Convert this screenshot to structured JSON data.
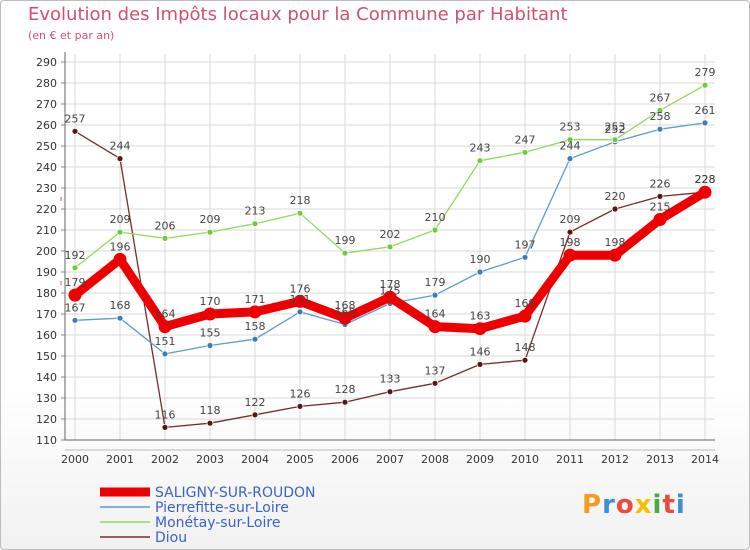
{
  "header": {
    "title": "Evolution des Impôts locaux pour la Commune par Habitant",
    "subtitle": "(en € et par an)"
  },
  "logo": {
    "text": "Proxiti",
    "colors": [
      "#f39c1f",
      "#3b8fd8",
      "#e94b3c",
      "#f2c200",
      "#49a942",
      "#e94b3c",
      "#3b8fd8"
    ]
  },
  "chart_data": {
    "type": "line",
    "x": [
      "2000",
      "2001",
      "2002",
      "2003",
      "2004",
      "2005",
      "2006",
      "2007",
      "2008",
      "2009",
      "2010",
      "2011",
      "2012",
      "2013",
      "2014"
    ],
    "ylim": [
      110,
      290
    ],
    "yticks": [
      110,
      120,
      130,
      140,
      150,
      160,
      170,
      180,
      190,
      200,
      210,
      220,
      230,
      240,
      250,
      260,
      270,
      280,
      290
    ],
    "grid": true,
    "legend_position": "bottom-left",
    "series": [
      {
        "name": "Diou",
        "color": "#7a2a2a",
        "marker": "#5a1515",
        "values": [
          257,
          244,
          116,
          118,
          122,
          126,
          128,
          133,
          137,
          146,
          148,
          209,
          220,
          226,
          228
        ]
      },
      {
        "name": "Pierrefitte-sur-Loire",
        "color": "#5b9bd5",
        "marker": "#3b7cc0",
        "values": [
          167,
          168,
          151,
          155,
          158,
          171,
          165,
          175,
          179,
          190,
          197,
          244,
          252,
          258,
          261
        ]
      },
      {
        "name": "Monétay-sur-Loire",
        "color": "#8fdb5a",
        "marker": "#6fcb3a",
        "values": [
          192,
          209,
          206,
          209,
          213,
          218,
          199,
          202,
          210,
          243,
          247,
          253,
          253,
          267,
          279
        ]
      },
      {
        "name": "SALIGNY-SUR-ROUDON",
        "color": "#ee0000",
        "marker": "#ee0000",
        "values": [
          179,
          196,
          164,
          170,
          171,
          176,
          168,
          178,
          164,
          163,
          169,
          198,
          198,
          215,
          228
        ]
      }
    ],
    "legend_order": [
      "SALIGNY-SUR-ROUDON",
      "Pierrefitte-sur-Loire",
      "Monétay-sur-Loire",
      "Diou"
    ]
  }
}
